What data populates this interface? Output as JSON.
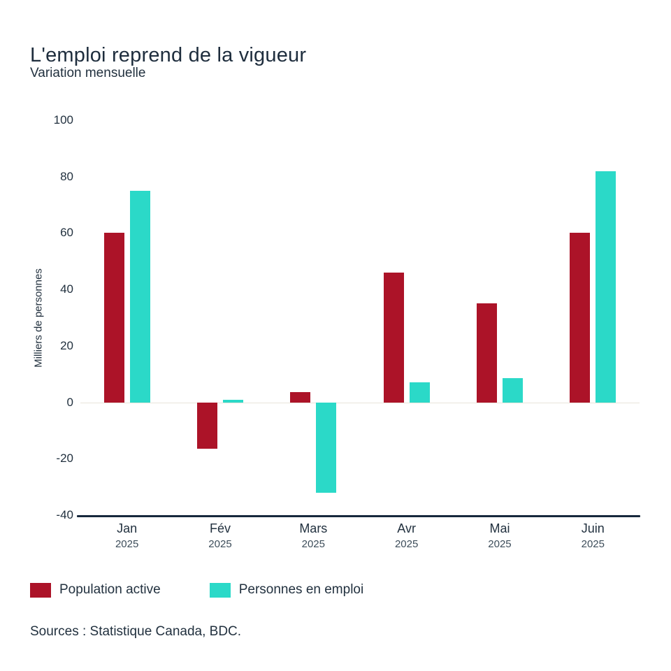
{
  "header": {
    "title": "L'emploi reprend de la vigueur",
    "subtitle": "Variation mensuelle"
  },
  "chart_data": {
    "type": "bar",
    "title": "L'emploi reprend de la vigueur",
    "subtitle": "Variation mensuelle",
    "xlabel": "",
    "ylabel": "Milliers de personnes",
    "ylim": [
      -40,
      100
    ],
    "yticks": [
      100,
      80,
      60,
      40,
      20,
      0,
      -20,
      -40
    ],
    "categories": [
      "Jan",
      "Fév",
      "Mars",
      "Avr",
      "Mai",
      "Juin"
    ],
    "category_sublabels": [
      "2025",
      "2025",
      "2025",
      "2025",
      "2025",
      "2025"
    ],
    "series": [
      {
        "name": "Population active",
        "color": "#AC1328",
        "values": [
          60,
          -16.5,
          3.5,
          46,
          35,
          60
        ]
      },
      {
        "name": "Personnes en emploi",
        "color": "#2BD9C8",
        "values": [
          75,
          1,
          -32,
          7,
          8.5,
          82
        ]
      }
    ],
    "grid": false,
    "legend_position": "bottom"
  },
  "footer": {
    "sources": "Sources : Statistique Canada, BDC."
  },
  "colors": {
    "series1": "#AC1328",
    "series2": "#2BD9C8",
    "text": "#1E2D3D",
    "zero_line": "#E9E4DA",
    "axis_line": "#16283C"
  }
}
